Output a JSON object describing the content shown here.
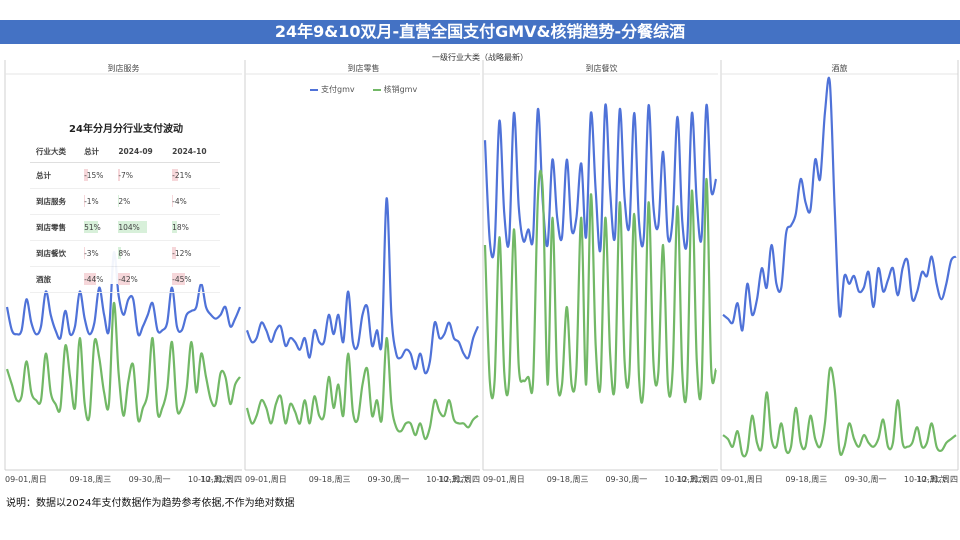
{
  "title": "24年9&10双月-直营全国支付GMV&核销趋势-分餐综酒",
  "chart_header": "一级行业大类（战略最新）",
  "note": "说明：数据以2024年支付数据作为趋势参考依据,不作为绝对数据",
  "legend": [
    "支付gmv",
    "核销gmv"
  ],
  "colors": {
    "gmv": "#4f72d8",
    "writeoff": "#72b866",
    "title_bg": "#4472c4"
  },
  "table": {
    "title": "24年分月分行业支付波动",
    "headers": [
      "行业大类",
      "总计",
      "2024-09",
      "2024-10"
    ],
    "rows": [
      [
        "总计",
        "-15%",
        "-7%",
        "-21%"
      ],
      [
        "到店服务",
        "-1%",
        "2%",
        "-4%"
      ],
      [
        "到店零售",
        "51%",
        "104%",
        "18%"
      ],
      [
        "到店餐饮",
        "-3%",
        "8%",
        "-12%"
      ],
      [
        "酒旅",
        "-44%",
        "-42%",
        "-45%"
      ]
    ]
  },
  "chart_data": {
    "type": "line",
    "title": "",
    "x_tick_labels": [
      "09-01,周日",
      "09-18,周三",
      "09-30,周一",
      "10-12,周六",
      "10-31,周四"
    ],
    "panels": [
      {
        "name": "到店服务",
        "series": [
          {
            "name": "支付gmv",
            "values": [
              42,
              36,
              35,
              36,
              44,
              38,
              35,
              37,
              46,
              40,
              36,
              34,
              41,
              35,
              37,
              46,
              39,
              35,
              38,
              47,
              40,
              36,
              56,
              45,
              40,
              44,
              44,
              35,
              37,
              40,
              43,
              36,
              36,
              38,
              47,
              37,
              36,
              40,
              41,
              42,
              48,
              42,
              40,
              39,
              40,
              42,
              37,
              39,
              42
            ]
          },
          {
            "name": "核销gmv",
            "values": [
              26,
              22,
              18,
              19,
              28,
              20,
              18,
              18,
              30,
              20,
              17,
              16,
              32,
              24,
              16,
              34,
              17,
              14,
              33,
              29,
              20,
              17,
              43,
              25,
              14,
              23,
              27,
              13,
              16,
              20,
              34,
              15,
              16,
              21,
              33,
              16,
              16,
              21,
              33,
              20,
              30,
              24,
              18,
              17,
              25,
              24,
              17,
              22,
              24
            ]
          }
        ]
      },
      {
        "name": "到店零售",
        "series": [
          {
            "name": "支付gmv",
            "values": [
              36,
              33,
              34,
              38,
              36,
              33,
              36,
              37,
              32,
              34,
              33,
              31,
              34,
              29,
              36,
              33,
              33,
              40,
              35,
              40,
              33,
              46,
              33,
              32,
              40,
              42,
              32,
              36,
              33,
              70,
              40,
              30,
              29,
              31,
              30,
              26,
              30,
              25,
              28,
              38,
              34,
              35,
              38,
              34,
              33,
              30,
              29,
              34,
              37
            ]
          },
          {
            "name": "核销gmv",
            "values": [
              16,
              12,
              14,
              18,
              16,
              12,
              17,
              19,
              12,
              17,
              15,
              12,
              18,
              12,
              19,
              14,
              14,
              24,
              16,
              22,
              14,
              30,
              15,
              13,
              22,
              26,
              14,
              18,
              13,
              34,
              17,
              11,
              10,
              12,
              12,
              9,
              12,
              8,
              11,
              18,
              15,
              14,
              18,
              13,
              12,
              12,
              11,
              13,
              14
            ]
          }
        ]
      },
      {
        "name": "到店餐饮",
        "series": [
          {
            "name": "支付gmv",
            "values": [
              85,
              59,
              58,
              90,
              66,
              59,
              92,
              68,
              59,
              62,
              60,
              93,
              69,
              58,
              80,
              65,
              60,
              80,
              62,
              65,
              79,
              60,
              92,
              72,
              57,
              94,
              72,
              60,
              93,
              70,
              63,
              92,
              64,
              60,
              94,
              68,
              63,
              82,
              60,
              65,
              91,
              64,
              59,
              92,
              69,
              60,
              94,
              72,
              75
            ]
          },
          {
            "name": "核销gmv",
            "values": [
              58,
              23,
              23,
              60,
              25,
              23,
              62,
              27,
              23,
              24,
              23,
              70,
              72,
              22,
              65,
              24,
              22,
              42,
              22,
              26,
              65,
              22,
              71,
              32,
              22,
              65,
              30,
              22,
              69,
              28,
              25,
              66,
              24,
              22,
              69,
              28,
              25,
              58,
              22,
              26,
              68,
              25,
              22,
              72,
              28,
              22,
              75,
              26,
              26
            ]
          }
        ]
      },
      {
        "name": "酒旅",
        "series": [
          {
            "name": "支付gmv",
            "values": [
              40,
              39,
              38,
              43,
              36,
              48,
              40,
              44,
              52,
              47,
              58,
              48,
              47,
              61,
              63,
              66,
              75,
              69,
              67,
              80,
              75,
              92,
              100,
              68,
              40,
              50,
              48,
              50,
              46,
              47,
              51,
              42,
              52,
              46,
              49,
              52,
              45,
              52,
              54,
              44,
              46,
              51,
              50,
              55,
              48,
              44,
              48,
              54,
              55
            ]
          },
          {
            "name": "核销gmv",
            "values": [
              9,
              8,
              6,
              10,
              4,
              5,
              14,
              7,
              6,
              20,
              8,
              6,
              12,
              5,
              6,
              16,
              7,
              6,
              14,
              8,
              6,
              12,
              26,
              21,
              5,
              6,
              12,
              8,
              6,
              9,
              7,
              6,
              8,
              13,
              6,
              7,
              18,
              7,
              6,
              7,
              11,
              6,
              7,
              12,
              6,
              5,
              7,
              8,
              9
            ]
          }
        ]
      }
    ]
  }
}
